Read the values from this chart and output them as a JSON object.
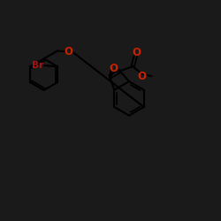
{
  "bg_color": "#1a1a1a",
  "bond_color": "black",
  "O_color": "#cc2200",
  "Br_color": "#aa1111",
  "lw": 1.5,
  "lw_dbl": 1.3,
  "dbl_off": 0.09,
  "font_size": 7.5,
  "scale": 1.0,
  "xlim": [
    0,
    10
  ],
  "ylim": [
    0,
    10
  ]
}
